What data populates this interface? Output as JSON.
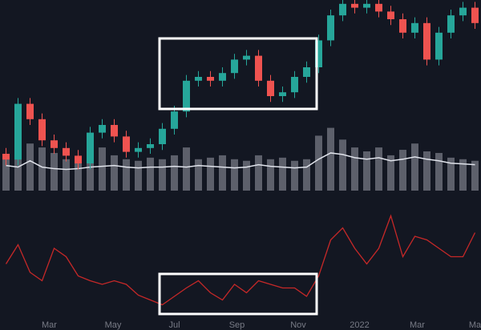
{
  "chart_data": [
    {
      "type": "candlestick",
      "open": [
        20,
        17,
        46,
        38,
        27,
        23,
        19,
        15,
        31,
        35,
        29,
        21,
        23,
        25,
        33,
        42,
        58,
        60,
        58,
        62,
        69,
        71,
        58,
        50,
        52,
        60,
        65,
        79,
        92,
        98,
        96,
        98,
        94,
        90,
        83,
        88,
        69,
        83,
        92,
        96
      ],
      "high": [
        23,
        49,
        49,
        41,
        30,
        26,
        22,
        34,
        38,
        38,
        32,
        26,
        28,
        36,
        45,
        61,
        63,
        63,
        65,
        72,
        74,
        74,
        61,
        55,
        63,
        68,
        82,
        95,
        101,
        101,
        101,
        101,
        97,
        93,
        91,
        91,
        86,
        95,
        99,
        99
      ],
      "low": [
        14,
        14,
        35,
        24,
        20,
        16,
        12,
        12,
        28,
        26,
        18,
        18,
        20,
        22,
        30,
        39,
        55,
        55,
        55,
        59,
        66,
        55,
        47,
        47,
        49,
        57,
        62,
        76,
        89,
        93,
        93,
        91,
        87,
        80,
        80,
        66,
        66,
        80,
        89,
        85
      ],
      "close": [
        17,
        46,
        38,
        27,
        23,
        19,
        15,
        31,
        35,
        29,
        21,
        23,
        25,
        33,
        42,
        58,
        60,
        58,
        62,
        69,
        71,
        58,
        50,
        52,
        60,
        65,
        79,
        92,
        98,
        96,
        98,
        94,
        90,
        83,
        88,
        69,
        83,
        92,
        96,
        88
      ],
      "volume": [
        45,
        50,
        60,
        55,
        48,
        40,
        42,
        50,
        55,
        45,
        40,
        38,
        42,
        40,
        45,
        55,
        40,
        42,
        45,
        40,
        38,
        45,
        40,
        42,
        38,
        40,
        70,
        80,
        65,
        55,
        50,
        55,
        45,
        52,
        60,
        50,
        48,
        42,
        40,
        38
      ],
      "volume_ma": [
        32,
        30,
        38,
        30,
        28,
        27,
        28,
        30,
        31,
        32,
        30,
        29,
        30,
        30,
        31,
        30,
        32,
        31,
        30,
        29,
        30,
        33,
        31,
        30,
        29,
        30,
        40,
        48,
        46,
        42,
        40,
        42,
        38,
        40,
        43,
        40,
        38,
        35,
        34,
        33
      ],
      "up_color": "#26a69a",
      "down_color": "#ef5350",
      "volume_color": "#5d606b",
      "ma_color": "#e0e3eb",
      "xlim": [
        0,
        40
      ],
      "ylim": [
        0,
        100
      ],
      "volume_lim": [
        0,
        100
      ]
    },
    {
      "type": "line",
      "values": [
        47,
        63,
        40,
        33,
        60,
        53,
        37,
        33,
        30,
        33,
        30,
        21,
        17,
        13,
        20,
        27,
        33,
        23,
        17,
        30,
        23,
        33,
        30,
        27,
        27,
        20,
        37,
        67,
        77,
        60,
        47,
        60,
        87,
        53,
        70,
        67,
        60,
        53,
        53,
        73
      ],
      "color": "#c62828",
      "xlim": [
        0,
        40
      ],
      "ylim": [
        0,
        100
      ],
      "xticks": [
        {
          "value": 4.1,
          "label": "Mar"
        },
        {
          "value": 9.4,
          "label": "May"
        },
        {
          "value": 14.5,
          "label": "Jul"
        },
        {
          "value": 19.7,
          "label": "Sep"
        },
        {
          "value": 24.8,
          "label": "Nov"
        },
        {
          "value": 29.9,
          "label": "2022"
        },
        {
          "value": 34.7,
          "label": "Mar"
        },
        {
          "value": 39.5,
          "label": "Ma"
        }
      ]
    }
  ]
}
